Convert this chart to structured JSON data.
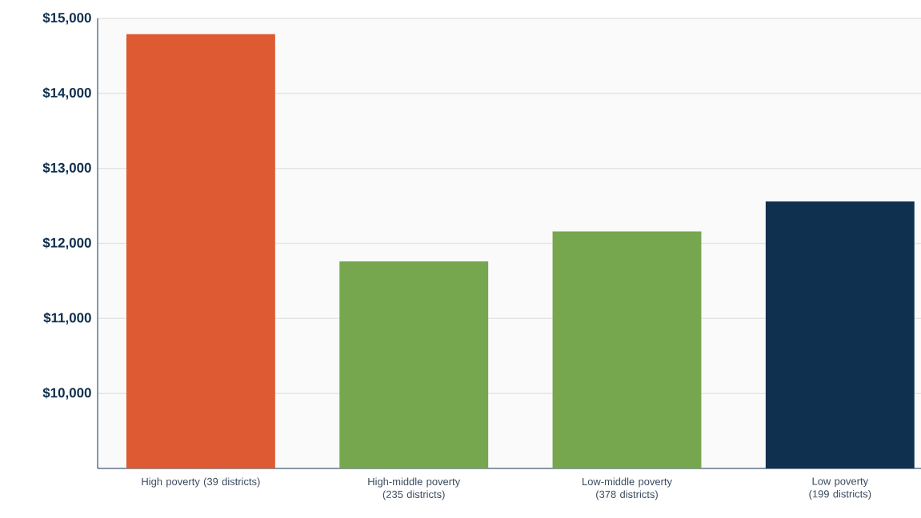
{
  "chart_data": {
    "type": "bar",
    "categories": [
      "High poverty (39 districts)",
      "High-middle poverty (235 districts)",
      "Low-middle poverty (378 districts)",
      "Low poverty (199 districts)"
    ],
    "values": [
      14790,
      11760,
      12160,
      12560
    ],
    "colors": [
      "#dd5a32",
      "#76a74e",
      "#76a74e",
      "#10304f"
    ],
    "ylim": [
      9000,
      15000
    ],
    "yticks": [
      {
        "value": 10000,
        "label": "$10,000"
      },
      {
        "value": 11000,
        "label": "$11,000"
      },
      {
        "value": 12000,
        "label": "$12,000"
      },
      {
        "value": 13000,
        "label": "$13,000"
      },
      {
        "value": 14000,
        "label": "$14,000"
      },
      {
        "value": 15000,
        "label": "$15,000"
      }
    ],
    "grid": "y"
  }
}
